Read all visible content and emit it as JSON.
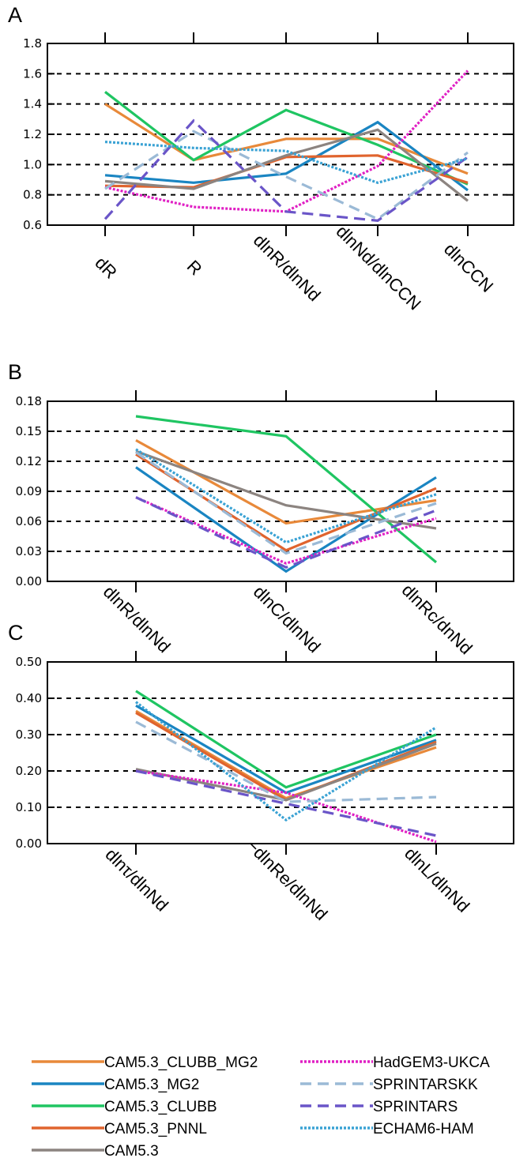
{
  "legend": [
    {
      "name": "CAM5.3_CLUBB_MG2",
      "color": "#e8893a",
      "dash": "solid"
    },
    {
      "name": "CAM5.3_MG2",
      "color": "#1a85c2",
      "dash": "solid"
    },
    {
      "name": "CAM5.3_CLUBB",
      "color": "#1fc562",
      "dash": "solid"
    },
    {
      "name": "CAM5.3_PNNL",
      "color": "#e0642e",
      "dash": "solid"
    },
    {
      "name": "CAM5.3",
      "color": "#8c8480",
      "dash": "solid"
    },
    {
      "name": "HadGEM3-UKCA",
      "color": "#e020c4",
      "dash": "dotted"
    },
    {
      "name": "SPRINTARSKK",
      "color": "#9bbad6",
      "dash": "dashed"
    },
    {
      "name": "SPRINTARS",
      "color": "#6a55c8",
      "dash": "dashed"
    },
    {
      "name": "ECHAM6-HAM",
      "color": "#3aa2d4",
      "dash": "dotted"
    }
  ],
  "chart_data": [
    {
      "type": "line",
      "panel": "A",
      "categories": [
        "dR",
        "R",
        "dlnR/dlnNd",
        "dlnNd/dlnCCN",
        "dlnCCN"
      ],
      "ylim": [
        0.6,
        1.8
      ],
      "yticks": [
        "0.6",
        "0.8",
        "1.0",
        "1.2",
        "1.4",
        "1.6",
        "1.8"
      ],
      "ytick_values": [
        0.6,
        0.8,
        1.0,
        1.2,
        1.4,
        1.6,
        1.8
      ],
      "grid": "dashed horizontal",
      "series": [
        {
          "name": "CAM5.3_CLUBB_MG2",
          "values": [
            1.4,
            1.03,
            1.17,
            1.17,
            0.94
          ]
        },
        {
          "name": "CAM5.3_MG2",
          "values": [
            0.93,
            0.88,
            0.94,
            1.28,
            0.83
          ]
        },
        {
          "name": "CAM5.3_CLUBB",
          "values": [
            1.48,
            1.03,
            1.36,
            1.13,
            0.87
          ]
        },
        {
          "name": "CAM5.3_PNNL",
          "values": [
            0.86,
            0.85,
            1.05,
            1.06,
            0.88
          ]
        },
        {
          "name": "CAM5.3",
          "values": [
            0.89,
            0.84,
            1.06,
            1.23,
            0.76
          ]
        },
        {
          "name": "HadGEM3-UKCA",
          "values": [
            0.85,
            0.72,
            0.69,
            0.99,
            1.62
          ]
        },
        {
          "name": "SPRINTARSKK",
          "values": [
            0.84,
            1.22,
            0.92,
            0.64,
            1.08
          ]
        },
        {
          "name": "SPRINTARS",
          "values": [
            0.64,
            1.29,
            0.69,
            0.63,
            1.05
          ]
        },
        {
          "name": "ECHAM6-HAM",
          "values": [
            1.15,
            1.11,
            1.09,
            0.88,
            1.04
          ]
        }
      ]
    },
    {
      "type": "line",
      "panel": "B",
      "categories": [
        "dlnR/dlnNd",
        "dlnC/dlnNd",
        "dlnRc/dnNd"
      ],
      "ylim": [
        0.0,
        0.18
      ],
      "yticks": [
        "0.00",
        "0.03",
        "0.06",
        "0.09",
        "0.12",
        "0.15",
        "0.18"
      ],
      "ytick_values": [
        0.0,
        0.03,
        0.06,
        0.09,
        0.12,
        0.15,
        0.18
      ],
      "grid": "dashed horizontal",
      "series": [
        {
          "name": "CAM5.3_CLUBB_MG2",
          "values": [
            0.141,
            0.058,
            0.081
          ]
        },
        {
          "name": "CAM5.3_MG2",
          "values": [
            0.114,
            0.01,
            0.104
          ]
        },
        {
          "name": "CAM5.3_CLUBB",
          "values": [
            0.165,
            0.145,
            0.019
          ]
        },
        {
          "name": "CAM5.3_PNNL",
          "values": [
            0.127,
            0.031,
            0.093
          ]
        },
        {
          "name": "CAM5.3",
          "values": [
            0.13,
            0.076,
            0.053
          ]
        },
        {
          "name": "HadGEM3-UKCA",
          "values": [
            0.084,
            0.018,
            0.063
          ]
        },
        {
          "name": "SPRINTARSKK",
          "values": [
            0.129,
            0.028,
            0.078
          ]
        },
        {
          "name": "SPRINTARS",
          "values": [
            0.084,
            0.014,
            0.071
          ]
        },
        {
          "name": "ECHAM6-HAM",
          "values": [
            0.132,
            0.039,
            0.087
          ]
        }
      ]
    },
    {
      "type": "line",
      "panel": "C",
      "categories": [
        "dlnτ/dlnNd",
        "−dlnRe/dlnNd",
        "dlnL/dlnNd"
      ],
      "ylim": [
        0.0,
        0.5
      ],
      "yticks": [
        "0.00",
        "0.10",
        "0.20",
        "0.30",
        "0.40",
        "0.50"
      ],
      "ytick_values": [
        0.0,
        0.1,
        0.2,
        0.3,
        0.4,
        0.5
      ],
      "grid": "dashed horizontal",
      "series": [
        {
          "name": "CAM5.3_CLUBB_MG2",
          "values": [
            0.365,
            0.125,
            0.265
          ]
        },
        {
          "name": "CAM5.3_MG2",
          "values": [
            0.38,
            0.14,
            0.285
          ]
        },
        {
          "name": "CAM5.3_CLUBB",
          "values": [
            0.42,
            0.155,
            0.3
          ]
        },
        {
          "name": "CAM5.3_PNNL",
          "values": [
            0.36,
            0.12,
            0.28
          ]
        },
        {
          "name": "CAM5.3",
          "values": [
            0.205,
            0.12,
            0.275
          ]
        },
        {
          "name": "HadGEM3-UKCA",
          "values": [
            0.2,
            0.14,
            0.005
          ]
        },
        {
          "name": "SPRINTARSKK",
          "values": [
            0.335,
            0.115,
            0.128
          ]
        },
        {
          "name": "SPRINTARS",
          "values": [
            0.2,
            0.11,
            0.022
          ]
        },
        {
          "name": "ECHAM6-HAM",
          "values": [
            0.39,
            0.065,
            0.32
          ]
        }
      ]
    }
  ]
}
